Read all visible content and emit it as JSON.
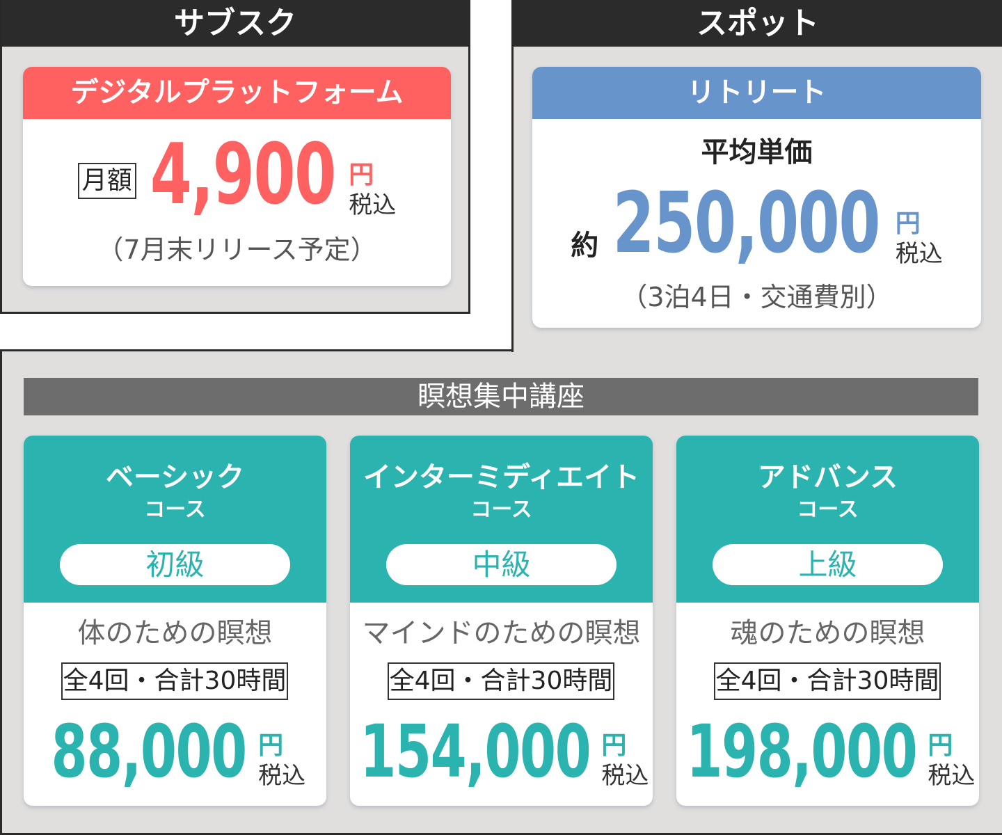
{
  "subscription": {
    "header": "サブスク",
    "card_title": "デジタルプラットフォーム",
    "monthly_label": "月額",
    "price": "4,900",
    "yen": "円",
    "tax": "税込",
    "note": "（7月末リリース予定）"
  },
  "spot": {
    "header": "スポット",
    "card_title": "リトリート",
    "avg_label": "平均単価",
    "approx": "約",
    "price": "250,000",
    "yen": "円",
    "tax": "税込",
    "note": "（3泊4日・交通費別）"
  },
  "meditation": {
    "header": "瞑想集中講座",
    "courses": [
      {
        "name": "ベーシック",
        "sub": "コース",
        "level": "初級",
        "desc": "体のための瞑想",
        "sessions": "全4回・合計30時間",
        "price": "88,000",
        "yen": "円",
        "tax": "税込"
      },
      {
        "name": "インターミディエイト",
        "sub": "コース",
        "level": "中級",
        "desc": "マインドのための瞑想",
        "sessions": "全4回・合計30時間",
        "price": "154,000",
        "yen": "円",
        "tax": "税込"
      },
      {
        "name": "アドバンス",
        "sub": "コース",
        "level": "上級",
        "desc": "魂のための瞑想",
        "sessions": "全4回・合計30時間",
        "price": "198,000",
        "yen": "円",
        "tax": "税込"
      }
    ]
  },
  "colors": {
    "red": "#ff6060",
    "blue": "#6694cb",
    "teal": "#2bb3af",
    "dark": "#2b2b2b",
    "gray_bar": "#6d6d6d",
    "panel_bg": "#e0dfde"
  }
}
